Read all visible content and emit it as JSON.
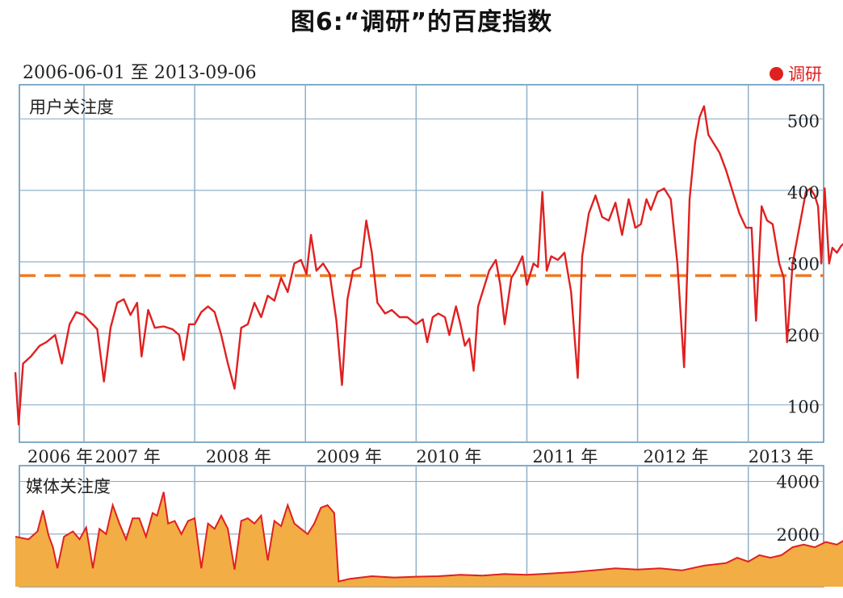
{
  "chart_data": [
    {
      "type": "line",
      "title": "图6:“调研”的百度指数",
      "subtitle": "2006-06-01 至 2013-09-06",
      "panel_label": "用户关注度",
      "legend": [
        {
          "name": "调研",
          "color": "#e02020"
        }
      ],
      "x_range": [
        "2006-06-01",
        "2013-09-06"
      ],
      "x_tick_labels": [
        "2006 年",
        "2007 年",
        "2008 年",
        "2009 年",
        "2010 年",
        "2011 年",
        "2012 年",
        "2013 年"
      ],
      "ylim": [
        50,
        550
      ],
      "y_tick_labels": [
        "100",
        "200",
        "300",
        "400",
        "500"
      ],
      "y_ticks": [
        100,
        200,
        300,
        400,
        500
      ],
      "reference_line": 283,
      "grid": true,
      "series": [
        {
          "name": "调研",
          "color": "#e02020",
          "points": [
            [
              2006.38,
              148
            ],
            [
              2006.41,
              75
            ],
            [
              2006.45,
              160
            ],
            [
              2006.52,
              170
            ],
            [
              2006.6,
              185
            ],
            [
              2006.66,
              190
            ],
            [
              2006.74,
              200
            ],
            [
              2006.8,
              160
            ],
            [
              2006.87,
              215
            ],
            [
              2006.93,
              232
            ],
            [
              2007.0,
              228
            ],
            [
              2007.06,
              218
            ],
            [
              2007.12,
              208
            ],
            [
              2007.18,
              135
            ],
            [
              2007.24,
              210
            ],
            [
              2007.3,
              245
            ],
            [
              2007.36,
              250
            ],
            [
              2007.42,
              228
            ],
            [
              2007.48,
              245
            ],
            [
              2007.52,
              170
            ],
            [
              2007.58,
              235
            ],
            [
              2007.64,
              210
            ],
            [
              2007.72,
              212
            ],
            [
              2007.8,
              208
            ],
            [
              2007.86,
              200
            ],
            [
              2007.9,
              165
            ],
            [
              2007.95,
              215
            ],
            [
              2008.0,
              215
            ],
            [
              2008.06,
              232
            ],
            [
              2008.12,
              240
            ],
            [
              2008.18,
              232
            ],
            [
              2008.24,
              200
            ],
            [
              2008.3,
              160
            ],
            [
              2008.36,
              125
            ],
            [
              2008.42,
              210
            ],
            [
              2008.48,
              215
            ],
            [
              2008.54,
              245
            ],
            [
              2008.6,
              225
            ],
            [
              2008.66,
              255
            ],
            [
              2008.72,
              248
            ],
            [
              2008.78,
              280
            ],
            [
              2008.84,
              260
            ],
            [
              2008.9,
              300
            ],
            [
              2008.96,
              305
            ],
            [
              2009.01,
              285
            ],
            [
              2009.05,
              340
            ],
            [
              2009.1,
              290
            ],
            [
              2009.16,
              300
            ],
            [
              2009.22,
              285
            ],
            [
              2009.28,
              220
            ],
            [
              2009.33,
              130
            ],
            [
              2009.38,
              250
            ],
            [
              2009.43,
              290
            ],
            [
              2009.5,
              295
            ],
            [
              2009.55,
              360
            ],
            [
              2009.6,
              315
            ],
            [
              2009.65,
              245
            ],
            [
              2009.72,
              230
            ],
            [
              2009.78,
              235
            ],
            [
              2009.85,
              225
            ],
            [
              2009.92,
              225
            ],
            [
              2010.0,
              215
            ],
            [
              2010.06,
              222
            ],
            [
              2010.1,
              190
            ],
            [
              2010.15,
              225
            ],
            [
              2010.2,
              230
            ],
            [
              2010.26,
              225
            ],
            [
              2010.3,
              200
            ],
            [
              2010.36,
              240
            ],
            [
              2010.4,
              215
            ],
            [
              2010.44,
              185
            ],
            [
              2010.48,
              195
            ],
            [
              2010.52,
              150
            ],
            [
              2010.56,
              240
            ],
            [
              2010.6,
              260
            ],
            [
              2010.66,
              290
            ],
            [
              2010.72,
              305
            ],
            [
              2010.76,
              270
            ],
            [
              2010.8,
              215
            ],
            [
              2010.86,
              280
            ],
            [
              2010.9,
              290
            ],
            [
              2010.96,
              310
            ],
            [
              2011.0,
              270
            ],
            [
              2011.06,
              300
            ],
            [
              2011.1,
              295
            ],
            [
              2011.14,
              400
            ],
            [
              2011.18,
              290
            ],
            [
              2011.22,
              310
            ],
            [
              2011.28,
              305
            ],
            [
              2011.34,
              315
            ],
            [
              2011.4,
              260
            ],
            [
              2011.46,
              140
            ],
            [
              2011.5,
              310
            ],
            [
              2011.56,
              370
            ],
            [
              2011.62,
              395
            ],
            [
              2011.68,
              365
            ],
            [
              2011.74,
              360
            ],
            [
              2011.8,
              385
            ],
            [
              2011.86,
              340
            ],
            [
              2011.92,
              390
            ],
            [
              2011.98,
              350
            ],
            [
              2012.03,
              355
            ],
            [
              2012.08,
              390
            ],
            [
              2012.12,
              375
            ],
            [
              2012.18,
              400
            ],
            [
              2012.24,
              405
            ],
            [
              2012.3,
              390
            ],
            [
              2012.36,
              300
            ],
            [
              2012.42,
              155
            ],
            [
              2012.47,
              390
            ],
            [
              2012.52,
              470
            ],
            [
              2012.56,
              505
            ],
            [
              2012.6,
              520
            ],
            [
              2012.64,
              480
            ],
            [
              2012.68,
              470
            ],
            [
              2012.74,
              455
            ],
            [
              2012.8,
              430
            ],
            [
              2012.86,
              400
            ],
            [
              2012.92,
              370
            ],
            [
              2012.98,
              350
            ],
            [
              2013.03,
              350
            ],
            [
              2013.07,
              220
            ],
            [
              2013.12,
              380
            ],
            [
              2013.17,
              360
            ],
            [
              2013.22,
              355
            ],
            [
              2013.28,
              300
            ],
            [
              2013.32,
              280
            ],
            [
              2013.35,
              190
            ],
            [
              2013.4,
              300
            ],
            [
              2013.46,
              350
            ],
            [
              2013.52,
              400
            ],
            [
              2013.56,
              405
            ],
            [
              2013.6,
              395
            ],
            [
              2013.63,
              380
            ],
            [
              2013.66,
              300
            ],
            [
              2013.69,
              405
            ],
            [
              2013.73,
              300
            ],
            [
              2013.76,
              322
            ],
            [
              2013.8,
              315
            ],
            [
              2013.84,
              325
            ],
            [
              2013.88,
              330
            ]
          ]
        }
      ]
    },
    {
      "type": "area",
      "panel_label": "媒体关注度",
      "x_range": [
        "2006-06-01",
        "2013-09-06"
      ],
      "ylim": [
        0,
        4600
      ],
      "y_tick_labels": [
        "2000",
        "4000"
      ],
      "y_ticks": [
        2000,
        4000
      ],
      "grid": true,
      "series": [
        {
          "name": "调研",
          "color": "#e02020",
          "fill": "#f2ad45",
          "points": [
            [
              2006.38,
              1900
            ],
            [
              2006.5,
              1800
            ],
            [
              2006.58,
              2100
            ],
            [
              2006.63,
              2900
            ],
            [
              2006.68,
              1950
            ],
            [
              2006.72,
              1500
            ],
            [
              2006.76,
              700
            ],
            [
              2006.82,
              1900
            ],
            [
              2006.9,
              2100
            ],
            [
              2006.96,
              1800
            ],
            [
              2007.02,
              2250
            ],
            [
              2007.08,
              700
            ],
            [
              2007.14,
              2200
            ],
            [
              2007.2,
              2000
            ],
            [
              2007.26,
              3100
            ],
            [
              2007.32,
              2400
            ],
            [
              2007.38,
              1800
            ],
            [
              2007.44,
              2600
            ],
            [
              2007.5,
              2600
            ],
            [
              2007.56,
              1900
            ],
            [
              2007.62,
              2800
            ],
            [
              2007.66,
              2700
            ],
            [
              2007.72,
              3600
            ],
            [
              2007.76,
              2400
            ],
            [
              2007.82,
              2500
            ],
            [
              2007.88,
              2000
            ],
            [
              2007.94,
              2500
            ],
            [
              2008.0,
              2600
            ],
            [
              2008.06,
              700
            ],
            [
              2008.12,
              2400
            ],
            [
              2008.18,
              2200
            ],
            [
              2008.24,
              2700
            ],
            [
              2008.3,
              2200
            ],
            [
              2008.36,
              650
            ],
            [
              2008.42,
              2500
            ],
            [
              2008.48,
              2600
            ],
            [
              2008.54,
              2400
            ],
            [
              2008.6,
              2700
            ],
            [
              2008.66,
              1000
            ],
            [
              2008.72,
              2500
            ],
            [
              2008.78,
              2300
            ],
            [
              2008.84,
              3100
            ],
            [
              2008.9,
              2400
            ],
            [
              2008.96,
              2200
            ],
            [
              2009.02,
              2000
            ],
            [
              2009.08,
              2400
            ],
            [
              2009.14,
              3000
            ],
            [
              2009.2,
              3100
            ],
            [
              2009.26,
              2800
            ],
            [
              2009.3,
              200
            ],
            [
              2009.4,
              300
            ],
            [
              2009.6,
              400
            ],
            [
              2009.8,
              350
            ],
            [
              2010.0,
              380
            ],
            [
              2010.2,
              400
            ],
            [
              2010.4,
              450
            ],
            [
              2010.6,
              420
            ],
            [
              2010.8,
              480
            ],
            [
              2011.0,
              450
            ],
            [
              2011.2,
              500
            ],
            [
              2011.4,
              550
            ],
            [
              2011.6,
              620
            ],
            [
              2011.8,
              700
            ],
            [
              2012.0,
              650
            ],
            [
              2012.2,
              700
            ],
            [
              2012.4,
              620
            ],
            [
              2012.6,
              800
            ],
            [
              2012.8,
              900
            ],
            [
              2012.9,
              1100
            ],
            [
              2013.0,
              950
            ],
            [
              2013.1,
              1200
            ],
            [
              2013.2,
              1100
            ],
            [
              2013.3,
              1200
            ],
            [
              2013.4,
              1500
            ],
            [
              2013.5,
              1600
            ],
            [
              2013.6,
              1500
            ],
            [
              2013.7,
              1700
            ],
            [
              2013.8,
              1600
            ],
            [
              2013.88,
              1800
            ]
          ]
        }
      ]
    }
  ]
}
